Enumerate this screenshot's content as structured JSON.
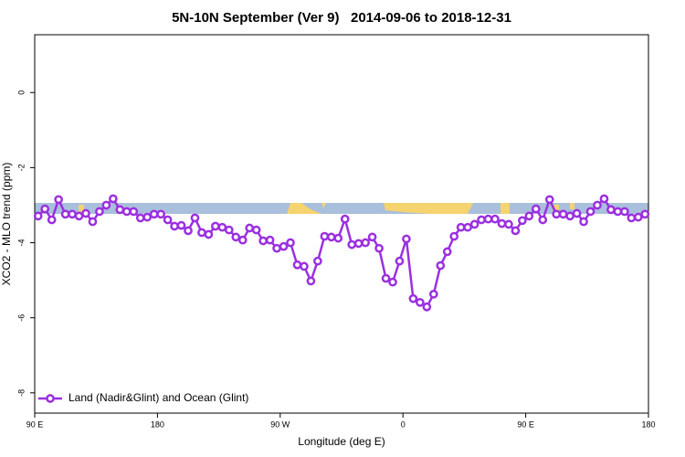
{
  "chart_data": {
    "type": "line",
    "title": "5N-10N September (Ver 9)   2014-09-06 to 2018-12-31",
    "xlabel": "Longitude (deg E)",
    "ylabel": "XCO2 - MLO trend (ppm)",
    "x": [
      92.5,
      97.5,
      102.5,
      107.5,
      112.5,
      117.5,
      122.5,
      127.5,
      132.5,
      137.5,
      142.5,
      147.5,
      152.5,
      157.5,
      162.5,
      167.5,
      172.5,
      177.5,
      182.5,
      187.5,
      192.5,
      197.5,
      202.5,
      207.5,
      212.5,
      217.5,
      222.5,
      227.5,
      232.5,
      237.5,
      242.5,
      247.5,
      252.5,
      257.5,
      262.5,
      267.5,
      272.5,
      277.5,
      282.5,
      287.5,
      292.5,
      297.5,
      302.5,
      307.5,
      312.5,
      317.5,
      322.5,
      327.5,
      332.5,
      337.5,
      342.5,
      347.5,
      352.5,
      357.5,
      362.5,
      367.5,
      372.5,
      377.5,
      382.5,
      387.5,
      392.5,
      397.5,
      402.5,
      407.5,
      412.5,
      417.5,
      422.5,
      427.5,
      432.5,
      437.5,
      442.5,
      447.5,
      452.5,
      457.5,
      462.5,
      467.5,
      472.5,
      477.5,
      482.5,
      487.5,
      492.5,
      497.5,
      502.5,
      507.5,
      512.5,
      517.5,
      522.5,
      527.5,
      532.5,
      537.5
    ],
    "series": [
      {
        "name": "Land (Nadir&Glint) and Ocean (Glint)",
        "color": "#9b30e0",
        "values": [
          -3.29,
          -3.1,
          -3.39,
          -2.85,
          -3.24,
          -3.24,
          -3.29,
          -3.22,
          -3.44,
          -3.17,
          -3.0,
          -2.83,
          -3.12,
          -3.17,
          -3.17,
          -3.34,
          -3.32,
          -3.24,
          -3.24,
          -3.39,
          -3.56,
          -3.54,
          -3.68,
          -3.34,
          -3.73,
          -3.78,
          -3.56,
          -3.59,
          -3.66,
          -3.85,
          -3.93,
          -3.61,
          -3.66,
          -3.95,
          -3.93,
          -4.15,
          -4.1,
          -4.0,
          -4.59,
          -4.63,
          -5.02,
          -4.49,
          -3.83,
          -3.85,
          -3.88,
          -3.37,
          -4.05,
          -4.02,
          -4.0,
          -3.85,
          -4.15,
          -4.95,
          -5.05,
          -4.49,
          -3.9,
          -5.49,
          -5.59,
          -5.71,
          -5.37,
          -4.61,
          -4.24,
          -3.83,
          -3.59,
          -3.59,
          -3.51,
          -3.39,
          -3.37,
          -3.37,
          -3.49,
          -3.51,
          -3.68,
          -3.41,
          -3.29,
          -3.1,
          -3.39,
          -2.85,
          -3.24,
          -3.24,
          -3.29,
          -3.22,
          -3.44,
          -3.17,
          -3.0,
          -2.83,
          -3.12,
          -3.17,
          -3.17,
          -3.34,
          -3.32,
          -3.24
        ]
      }
    ],
    "xlim": [
      90,
      540
    ],
    "ylim": [
      -8.54,
      1.54
    ],
    "xticks": [
      {
        "value": 90,
        "label": "90 E"
      },
      180,
      {
        "value": 270,
        "label": "90 W"
      },
      {
        "value": 360,
        "label": "0"
      },
      {
        "value": 450,
        "label": "90 E"
      },
      {
        "value": 540,
        "label": "180"
      }
    ],
    "yticks": [
      0,
      -2,
      -4,
      -6,
      -8
    ],
    "legend": "lower left"
  }
}
